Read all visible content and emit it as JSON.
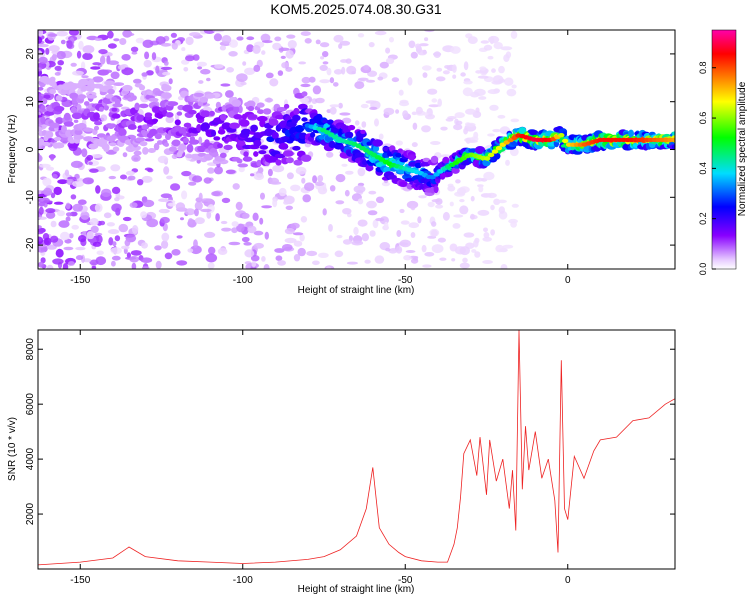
{
  "title": "KOM5.2025.074.08.30.G31",
  "colors": {
    "line": "#ee2222",
    "frame": "#000000",
    "axis_bg": "#ffffff"
  },
  "chart_data": [
    {
      "type": "heatmap",
      "xlabel": "Height of straight line (km)",
      "ylabel": "Frequency (Hz)",
      "xlim": [
        -163,
        33
      ],
      "ylim": [
        -25,
        25
      ],
      "xticks": [
        -150,
        -100,
        -50,
        0
      ],
      "yticks": [
        -20,
        -10,
        0,
        10,
        20
      ],
      "colormap": "rainbow (white → purple → blue → cyan → green → yellow → red → magenta)",
      "colorbar": {
        "label": "Normalized spectral amplitude",
        "range": [
          0.0,
          0.95
        ],
        "ticks": [
          0.0,
          0.2,
          0.4,
          0.6,
          0.8
        ]
      },
      "ridge": {
        "x": [
          -163,
          -140,
          -120,
          -100,
          -90,
          -80,
          -75,
          -70,
          -65,
          -60,
          -55,
          -50,
          -45,
          -42,
          -38,
          -35,
          -30,
          -25,
          -20,
          -15,
          -10,
          -5,
          -2,
          0,
          5,
          10,
          20,
          33
        ],
        "frequency": [
          8,
          7,
          6,
          3,
          2,
          5,
          4,
          2,
          1,
          -1,
          -3,
          -4,
          -5,
          -6,
          -4,
          -3,
          -1,
          -2,
          1,
          3,
          2,
          2,
          3,
          1,
          1,
          2,
          2,
          2
        ],
        "amplitude": [
          0.1,
          0.12,
          0.15,
          0.2,
          0.25,
          0.3,
          0.45,
          0.4,
          0.45,
          0.45,
          0.5,
          0.4,
          0.35,
          0.3,
          0.4,
          0.5,
          0.55,
          0.6,
          0.65,
          0.8,
          0.85,
          0.8,
          0.6,
          0.65,
          0.75,
          0.8,
          0.8,
          0.7
        ]
      }
    },
    {
      "type": "line",
      "xlabel": "Height of straight line (km)",
      "ylabel": "SNR (10 * v/v)",
      "xlim": [
        -163,
        33
      ],
      "ylim": [
        0,
        8700
      ],
      "xticks": [
        -150,
        -100,
        -50,
        0
      ],
      "yticks": [
        2000,
        4000,
        6000,
        8000
      ],
      "series": [
        {
          "x": [
            -163,
            -150,
            -140,
            -135,
            -130,
            -120,
            -110,
            -100,
            -90,
            -80,
            -75,
            -70,
            -65,
            -62,
            -60,
            -58,
            -55,
            -52,
            -50,
            -45,
            -40,
            -37,
            -35,
            -34,
            -33,
            -32,
            -30,
            -28,
            -27,
            -25,
            -24,
            -22,
            -20,
            -18,
            -17,
            -16,
            -15,
            -14,
            -13,
            -12,
            -10,
            -8,
            -6,
            -4,
            -3,
            -2,
            -1,
            0,
            2,
            5,
            8,
            10,
            15,
            20,
            25,
            30,
            33
          ],
          "y": [
            150,
            250,
            400,
            800,
            450,
            300,
            250,
            200,
            250,
            350,
            450,
            700,
            1200,
            2200,
            3700,
            1500,
            900,
            600,
            450,
            300,
            250,
            250,
            900,
            1500,
            2600,
            4200,
            4700,
            3400,
            4800,
            2700,
            4700,
            3200,
            4000,
            2200,
            3600,
            1400,
            8700,
            2900,
            5200,
            3600,
            5000,
            3300,
            4000,
            2500,
            600,
            7600,
            2200,
            1800,
            4100,
            3300,
            4300,
            4700,
            4800,
            5400,
            5500,
            6000,
            6200
          ]
        }
      ]
    }
  ]
}
